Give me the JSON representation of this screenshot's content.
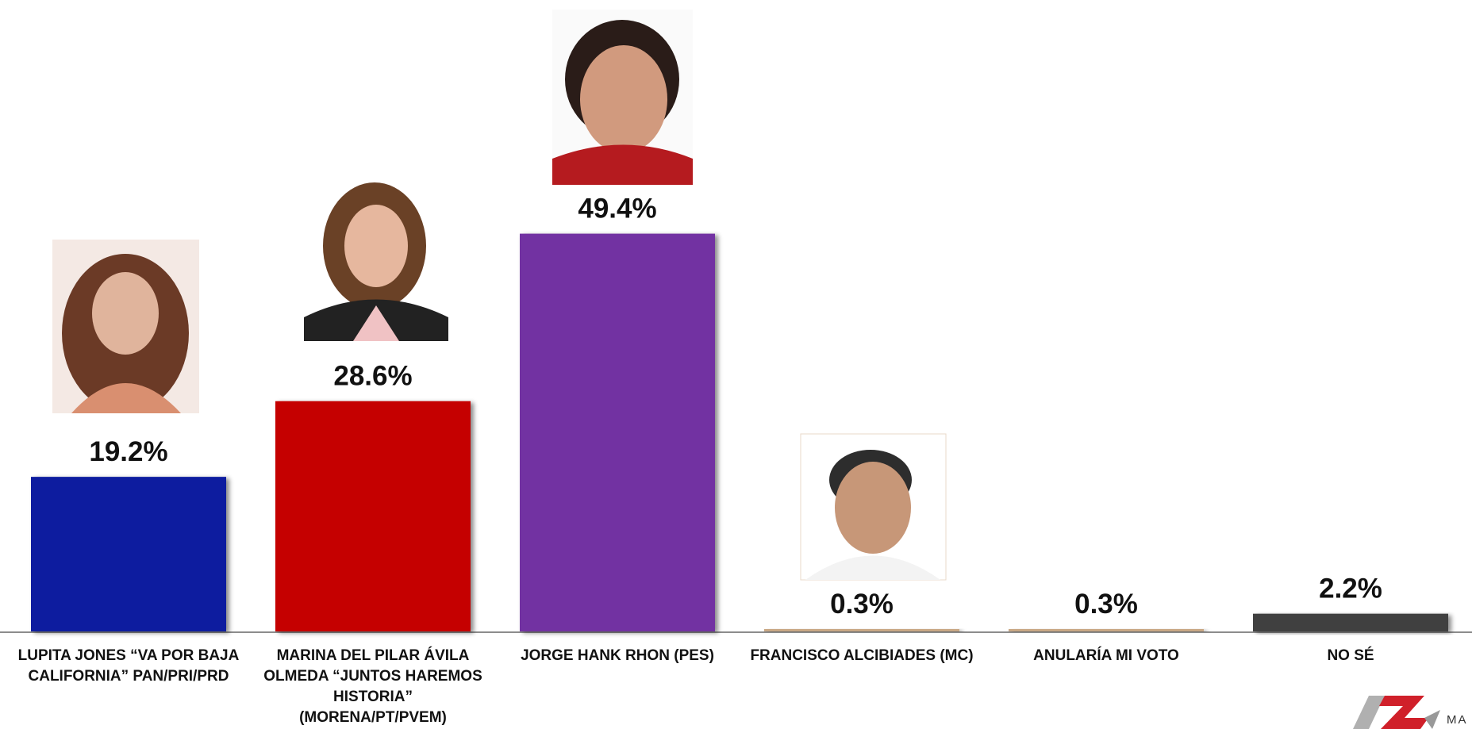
{
  "chart_data": {
    "type": "bar",
    "categories": [
      "LUPITA JONES “VA POR BAJA CALIFORNIA” PAN/PRI/PRD",
      "MARINA DEL PILAR ÁVILA OLMEDA “JUNTOS HAREMOS HISTORIA” (MORENA/PT/PVEM)",
      "JORGE HANK RHON (PES)",
      "FRANCISCO ALCIBIADES (MC)",
      "ANULARÍA MI VOTO",
      "NO SÉ"
    ],
    "values": [
      19.2,
      28.6,
      49.4,
      0.3,
      0.3,
      2.2
    ],
    "value_labels": [
      "19.2%",
      "28.6%",
      "49.4%",
      "0.3%",
      "0.3%",
      "2.2%"
    ],
    "colors": [
      "#0a1f9f",
      "#c50000",
      "#7231a2",
      "#c9a885",
      "#c9a885",
      "#3f3f3f"
    ]
  },
  "logo": {
    "text": "MA"
  }
}
